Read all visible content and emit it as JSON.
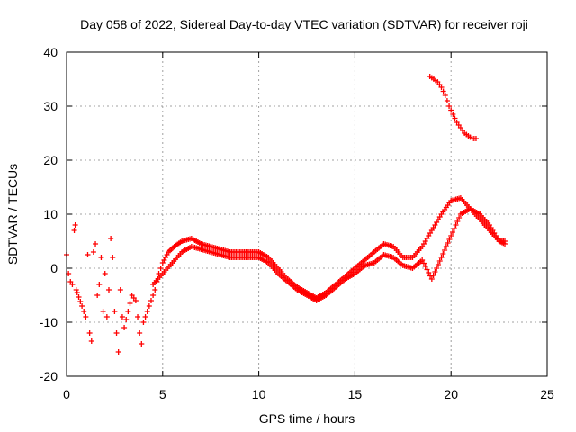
{
  "chart_data": {
    "type": "scatter",
    "title": "Day 058 of 2022, Sidereal Day-to-day VTEC variation (SDTVAR) for receiver roji",
    "xlabel": "GPS time / hours",
    "ylabel": "SDTVAR / TECUs",
    "xlim": [
      0,
      25
    ],
    "ylim": [
      -20,
      40
    ],
    "xticks": [
      0,
      5,
      10,
      15,
      20,
      25
    ],
    "yticks": [
      -20,
      -10,
      0,
      10,
      20,
      30,
      40
    ],
    "grid": true,
    "marker": "+",
    "color": "#ff0000",
    "series": [
      {
        "name": "track-a-early-scatter",
        "points": [
          [
            0.0,
            2.5
          ],
          [
            0.1,
            -1
          ],
          [
            0.2,
            -2.5
          ],
          [
            0.3,
            -3
          ],
          [
            0.4,
            7
          ],
          [
            0.45,
            8
          ],
          [
            0.5,
            -4
          ],
          [
            0.55,
            -4.5
          ],
          [
            0.8,
            -7
          ],
          [
            1.0,
            -9
          ],
          [
            1.1,
            2.5
          ],
          [
            1.2,
            -12
          ],
          [
            1.3,
            -13.5
          ],
          [
            1.4,
            3
          ],
          [
            1.5,
            4.5
          ],
          [
            1.6,
            -5
          ],
          [
            1.7,
            -3
          ],
          [
            1.8,
            2
          ],
          [
            1.9,
            -8
          ],
          [
            2.0,
            -1
          ],
          [
            2.1,
            -9
          ],
          [
            2.2,
            -4
          ],
          [
            2.3,
            5.5
          ],
          [
            2.4,
            2
          ],
          [
            2.5,
            -8
          ],
          [
            2.6,
            -12
          ],
          [
            2.7,
            -15.5
          ],
          [
            2.8,
            -4
          ],
          [
            2.9,
            -9
          ],
          [
            3.0,
            -11
          ],
          [
            3.2,
            -8
          ],
          [
            3.4,
            -5
          ],
          [
            3.6,
            -6
          ],
          [
            3.8,
            -12
          ],
          [
            3.9,
            -14
          ],
          [
            4.0,
            -10
          ],
          [
            4.2,
            -8
          ],
          [
            4.4,
            -6
          ],
          [
            4.6,
            -4
          ],
          [
            4.8,
            -1
          ],
          [
            5.0,
            1
          ],
          [
            5.3,
            3
          ],
          [
            5.6,
            4
          ],
          [
            6.0,
            5
          ],
          [
            6.5,
            5.5
          ],
          [
            7.0,
            4.5
          ],
          [
            7.5,
            4
          ],
          [
            8.0,
            3.5
          ],
          [
            8.5,
            3
          ],
          [
            9.0,
            3
          ],
          [
            9.5,
            3
          ],
          [
            10.0,
            3
          ],
          [
            10.5,
            2
          ],
          [
            11.0,
            0
          ],
          [
            11.5,
            -2
          ],
          [
            12.0,
            -3.5
          ],
          [
            12.5,
            -4.5
          ],
          [
            13.0,
            -5.5
          ],
          [
            13.5,
            -4.5
          ],
          [
            14.0,
            -3
          ],
          [
            14.5,
            -1.5
          ],
          [
            15.0,
            0
          ],
          [
            15.5,
            1.5
          ],
          [
            16.0,
            3
          ],
          [
            16.5,
            4.5
          ],
          [
            17.0,
            4
          ],
          [
            17.5,
            2
          ],
          [
            18.0,
            2
          ],
          [
            18.5,
            4
          ],
          [
            19.0,
            7
          ],
          [
            19.5,
            10
          ],
          [
            20.0,
            12.5
          ],
          [
            20.5,
            13
          ],
          [
            21.0,
            11
          ],
          [
            21.5,
            9
          ],
          [
            22.0,
            7
          ],
          [
            22.5,
            5
          ],
          [
            22.8,
            5
          ]
        ]
      },
      {
        "name": "track-b-offset",
        "points": [
          [
            4.5,
            -3
          ],
          [
            5.0,
            -1
          ],
          [
            5.5,
            1
          ],
          [
            6.0,
            3
          ],
          [
            6.5,
            4
          ],
          [
            7.0,
            3.5
          ],
          [
            7.5,
            3
          ],
          [
            8.0,
            2.5
          ],
          [
            8.5,
            2
          ],
          [
            9.0,
            2
          ],
          [
            9.5,
            2
          ],
          [
            10.0,
            2
          ],
          [
            10.5,
            1
          ],
          [
            11.0,
            -1
          ],
          [
            11.5,
            -2.5
          ],
          [
            12.0,
            -4
          ],
          [
            12.5,
            -5
          ],
          [
            13.0,
            -6
          ],
          [
            13.5,
            -5
          ],
          [
            14.0,
            -3.5
          ],
          [
            14.5,
            -2
          ],
          [
            15.0,
            -1
          ],
          [
            15.5,
            0.5
          ],
          [
            16.0,
            1
          ],
          [
            16.5,
            2.5
          ],
          [
            17.0,
            2
          ],
          [
            17.5,
            0.5
          ],
          [
            18.0,
            0
          ],
          [
            18.5,
            1.5
          ],
          [
            19.0,
            -2
          ],
          [
            19.5,
            2
          ],
          [
            20.0,
            6
          ],
          [
            20.5,
            10
          ],
          [
            21.0,
            11
          ],
          [
            21.5,
            10
          ],
          [
            22.0,
            8
          ],
          [
            22.5,
            5
          ],
          [
            22.8,
            4.5
          ]
        ]
      },
      {
        "name": "track-c-high",
        "points": [
          [
            18.9,
            35.5
          ],
          [
            19.1,
            35
          ],
          [
            19.3,
            34.5
          ],
          [
            19.5,
            33.5
          ],
          [
            19.7,
            32
          ],
          [
            19.9,
            30
          ],
          [
            20.1,
            28.5
          ],
          [
            20.3,
            27
          ],
          [
            20.5,
            26
          ],
          [
            20.7,
            25
          ],
          [
            20.9,
            24.5
          ],
          [
            21.1,
            24
          ],
          [
            21.3,
            24
          ]
        ]
      }
    ]
  }
}
